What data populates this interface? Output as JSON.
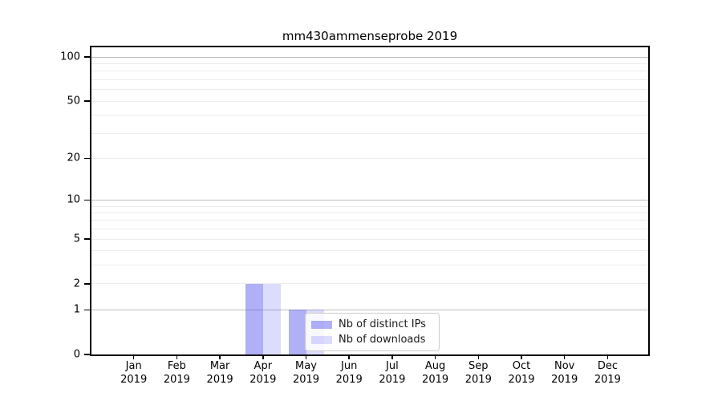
{
  "chart_data": {
    "type": "bar",
    "title": "mm430ammenseprobe 2019",
    "categories": [
      {
        "month": "Jan",
        "year": "2019"
      },
      {
        "month": "Feb",
        "year": "2019"
      },
      {
        "month": "Mar",
        "year": "2019"
      },
      {
        "month": "Apr",
        "year": "2019"
      },
      {
        "month": "May",
        "year": "2019"
      },
      {
        "month": "Jun",
        "year": "2019"
      },
      {
        "month": "Jul",
        "year": "2019"
      },
      {
        "month": "Aug",
        "year": "2019"
      },
      {
        "month": "Sep",
        "year": "2019"
      },
      {
        "month": "Oct",
        "year": "2019"
      },
      {
        "month": "Nov",
        "year": "2019"
      },
      {
        "month": "Dec",
        "year": "2019"
      }
    ],
    "series": [
      {
        "name": "Nb of distinct IPs",
        "color": "rgba(80, 80, 238, 0.45)",
        "values": [
          0,
          0,
          0,
          2,
          1,
          0,
          0,
          0,
          0,
          0,
          0,
          0
        ]
      },
      {
        "name": "Nb of downloads",
        "color": "rgba(80, 80, 238, 0.20)",
        "values": [
          0,
          0,
          0,
          2,
          1,
          0,
          0,
          0,
          0,
          0,
          0,
          0
        ]
      }
    ],
    "y_axis": {
      "scale": "log1p",
      "ticks": [
        {
          "value": 0,
          "label": "0"
        },
        {
          "value": 1,
          "label": "1"
        },
        {
          "value": 2,
          "label": "2"
        },
        {
          "value": 5,
          "label": "5"
        },
        {
          "value": 10,
          "label": "10"
        },
        {
          "value": 20,
          "label": "20"
        },
        {
          "value": 50,
          "label": "50"
        },
        {
          "value": 100,
          "label": "100"
        }
      ],
      "major_gridline_values": [
        1,
        10,
        100
      ],
      "minor_gridline_values": [
        2,
        3,
        4,
        5,
        6,
        7,
        8,
        9,
        20,
        30,
        40,
        50,
        60,
        70,
        80,
        90
      ]
    },
    "legend_position": "lower-center",
    "colors": {
      "grid_major": "#bdbdbd",
      "grid_minor": "#ececec",
      "axis_frame": "#000000"
    }
  }
}
